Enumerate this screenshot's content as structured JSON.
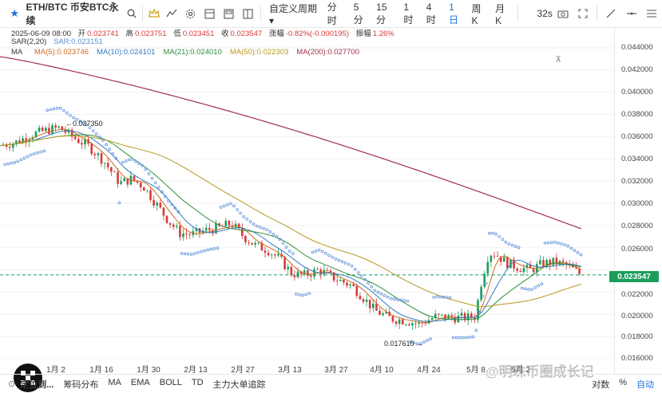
{
  "toolbar": {
    "symbol": "ETH/BTC 币安BTC永续",
    "intervals": [
      {
        "label": "自定义周期 ▾",
        "active": false
      },
      {
        "label": "分时",
        "active": false
      },
      {
        "label": "5分",
        "active": false
      },
      {
        "label": "15分",
        "active": false
      },
      {
        "label": "1时",
        "active": false
      },
      {
        "label": "4时",
        "active": false
      },
      {
        "label": "1日",
        "active": true
      },
      {
        "label": "周K",
        "active": false
      },
      {
        "label": "月K",
        "active": false
      }
    ],
    "countdown": "32s",
    "accent_color": "#1e6fd9"
  },
  "legend": {
    "ohlc": {
      "date": "2025-06-09 08:00",
      "open_label": "开",
      "open": "0.023741",
      "high_label": "高",
      "high": "0.023751",
      "low_label": "低",
      "low": "0.023451",
      "close_label": "收",
      "close": "0.023547",
      "change_label": "涨幅",
      "change": "-0.82%(-0.000195)",
      "amp_label": "振幅",
      "amp": "1.26%"
    },
    "sar": {
      "name": "SAR(2,20)",
      "value": "SAR:0.023151"
    },
    "ma": {
      "name": "MA",
      "items": [
        {
          "label": "MA(5):0.023746",
          "color": "#d06a1e"
        },
        {
          "label": "MA(10):0.024101",
          "color": "#2e7bc2"
        },
        {
          "label": "MA(21):0.024010",
          "color": "#2d8f3c"
        },
        {
          "label": "MA(50):0.022303",
          "color": "#b79a1e"
        },
        {
          "label": "MA(200):0.027700",
          "color": "#a0304a"
        }
      ]
    }
  },
  "yaxis": {
    "ticks": [
      "0.044000",
      "0.042000",
      "0.040000",
      "0.038000",
      "0.036000",
      "0.034000",
      "0.032000",
      "0.030000",
      "0.028000",
      "0.026000",
      "0.022000",
      "0.020000",
      "0.018000",
      "0.016000"
    ],
    "current_price": "0.023547"
  },
  "xaxis": {
    "ticks": [
      "1月 2",
      "1月 16",
      "1月 30",
      "2月 13",
      "2月 27",
      "3月 13",
      "3月 27",
      "4月 10",
      "4月 24",
      "5月 8",
      "5月 2"
    ]
  },
  "annotations": {
    "high_label": "0.037350",
    "low_label": "0.017610"
  },
  "bottombar": {
    "goto": "定位到...",
    "items": [
      "筹码分布",
      "MA",
      "EMA",
      "BOLL",
      "TD",
      "主力大单追踪"
    ],
    "right_items": [
      "对数",
      "%",
      "自动"
    ]
  },
  "watermark": "@明珠币圈成长记",
  "colors": {
    "up": "#1a9e5a",
    "down": "#d83a3a",
    "ma200": "#a0304a",
    "sar": "#5b8fd9"
  },
  "chart_data": {
    "type": "candlestick",
    "title": "ETH/BTC 币安BTC永续",
    "interval": "1日",
    "ylim": [
      0.016,
      0.045
    ],
    "last": {
      "open": 0.023741,
      "high": 0.023751,
      "low": 0.023451,
      "close": 0.023547
    },
    "ma": {
      "MA5": 0.023746,
      "MA10": 0.024101,
      "MA21": 0.02401,
      "MA50": 0.022303,
      "MA200": 0.0277
    },
    "sar": 0.023151,
    "extremes": {
      "high": 0.03735,
      "low": 0.01761
    }
  }
}
